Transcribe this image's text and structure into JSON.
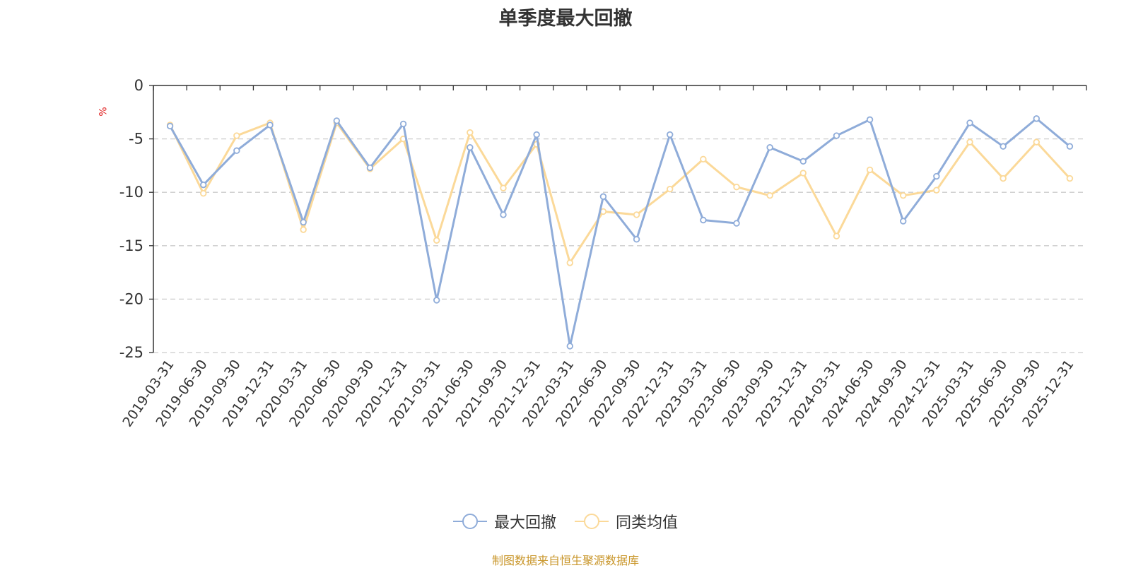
{
  "title": "单季度最大回撤",
  "unit": "%",
  "source": "制图数据来自恒生聚源数据库",
  "colors": {
    "series1": "#8facd9",
    "series2": "#fbd999",
    "axis": "#333333",
    "grid": "#cccccc",
    "unit": "#e02020",
    "source": "#c9962a"
  },
  "chart_data": {
    "type": "line",
    "title": "单季度最大回撤",
    "ylabel": "%",
    "ylim": [
      -25,
      0
    ],
    "yticks": [
      0,
      -5,
      -10,
      -15,
      -20,
      -25
    ],
    "grid": true,
    "legend_position": "bottom-center",
    "categories": [
      "2019-03-31",
      "2019-06-30",
      "2019-09-30",
      "2019-12-31",
      "2020-03-31",
      "2020-06-30",
      "2020-09-30",
      "2020-12-31",
      "2021-03-31",
      "2021-06-30",
      "2021-09-30",
      "2021-12-31",
      "2022-03-31",
      "2022-06-30",
      "2022-09-30",
      "2022-12-31",
      "2023-03-31",
      "2023-06-30",
      "2023-09-30",
      "2023-12-31",
      "2024-03-31",
      "2024-06-30",
      "2024-09-30",
      "2024-12-31",
      "2025-03-31",
      "2025-06-30",
      "2025-09-30",
      "2025-12-31"
    ],
    "series": [
      {
        "name": "最大回撤",
        "values": [
          -3.8,
          -9.3,
          -6.1,
          -3.7,
          -12.8,
          -3.3,
          -7.7,
          -3.6,
          -20.1,
          -5.8,
          -12.1,
          -4.6,
          -24.4,
          -10.4,
          -14.4,
          -4.6,
          -12.6,
          -12.9,
          -5.8,
          -7.1,
          -4.7,
          -3.2,
          -12.7,
          -8.5,
          -3.5,
          -5.7,
          -3.1,
          -5.7
        ]
      },
      {
        "name": "同类均值",
        "values": [
          -3.7,
          -10.1,
          -4.7,
          -3.5,
          -13.5,
          -3.5,
          -7.8,
          -5.0,
          -14.5,
          -4.4,
          -9.6,
          -5.5,
          -16.6,
          -11.8,
          -12.1,
          -9.7,
          -6.9,
          -9.5,
          -10.3,
          -8.2,
          -14.1,
          -7.9,
          -10.3,
          -9.8,
          -5.3,
          -8.7,
          -5.3,
          -8.7
        ]
      }
    ]
  }
}
